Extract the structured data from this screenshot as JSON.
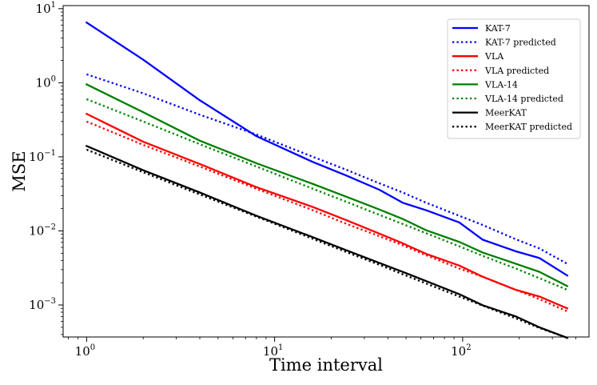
{
  "chart_data": {
    "type": "line",
    "title": "",
    "xlabel": "Time interval",
    "ylabel": "MSE",
    "xscale": "log",
    "yscale": "log",
    "xlim": [
      0.75,
      470
    ],
    "ylim": [
      0.00037,
      11
    ],
    "grid": false,
    "legend_position": "top-right",
    "x_ticks": [
      {
        "value": 1,
        "base": "10",
        "exp": "0"
      },
      {
        "value": 10,
        "base": "10",
        "exp": "1"
      },
      {
        "value": 100,
        "base": "10",
        "exp": "2"
      }
    ],
    "y_ticks": [
      {
        "value": 0.001,
        "base": "10",
        "exp": "−3"
      },
      {
        "value": 0.01,
        "base": "10",
        "exp": "−2"
      },
      {
        "value": 0.1,
        "base": "10",
        "exp": "−1"
      },
      {
        "value": 1,
        "base": "10",
        "exp": "0"
      },
      {
        "value": 10,
        "base": "10",
        "exp": "1"
      }
    ],
    "x": [
      1,
      2,
      4,
      8,
      16,
      24,
      36,
      48,
      64,
      96,
      128,
      192,
      256,
      360
    ],
    "series": [
      {
        "name": "KAT-7",
        "color": "#0000ff",
        "style": "solid",
        "values": [
          6.5,
          2.05,
          0.58,
          0.19,
          0.085,
          0.056,
          0.036,
          0.024,
          0.019,
          0.013,
          0.0076,
          0.0053,
          0.0043,
          0.0025
        ]
      },
      {
        "name": "KAT-7 predicted",
        "color": "#0000ff",
        "style": "dotted",
        "values": [
          1.3,
          0.72,
          0.37,
          0.2,
          0.1,
          0.067,
          0.044,
          0.033,
          0.024,
          0.016,
          0.012,
          0.0077,
          0.0058,
          0.0036
        ]
      },
      {
        "name": "VLA",
        "color": "#ff0000",
        "style": "solid",
        "values": [
          0.38,
          0.16,
          0.08,
          0.039,
          0.021,
          0.014,
          0.0092,
          0.0068,
          0.0049,
          0.0034,
          0.0024,
          0.0016,
          0.0013,
          0.0009
        ]
      },
      {
        "name": "VLA predicted",
        "color": "#ff0000",
        "style": "dotted",
        "values": [
          0.3,
          0.145,
          0.074,
          0.037,
          0.019,
          0.0125,
          0.0085,
          0.0064,
          0.0047,
          0.0031,
          0.0024,
          0.0016,
          0.0012,
          0.00082
        ]
      },
      {
        "name": "VLA-14",
        "color": "#008000",
        "style": "solid",
        "values": [
          0.95,
          0.4,
          0.165,
          0.082,
          0.043,
          0.029,
          0.0195,
          0.0145,
          0.0102,
          0.0071,
          0.0051,
          0.0036,
          0.0028,
          0.0018
        ]
      },
      {
        "name": "VLA-14 predicted",
        "color": "#008000",
        "style": "dotted",
        "values": [
          0.6,
          0.3,
          0.148,
          0.074,
          0.037,
          0.0248,
          0.0165,
          0.0124,
          0.0093,
          0.0062,
          0.0046,
          0.0031,
          0.0023,
          0.0016
        ]
      },
      {
        "name": "MeerKAT",
        "color": "#000000",
        "style": "solid",
        "values": [
          0.14,
          0.066,
          0.033,
          0.016,
          0.0082,
          0.0055,
          0.0037,
          0.0028,
          0.0021,
          0.0014,
          0.00099,
          0.0007,
          0.0005,
          0.00036
        ]
      },
      {
        "name": "MeerKAT predicted",
        "color": "#000000",
        "style": "dotted",
        "values": [
          0.125,
          0.062,
          0.031,
          0.0156,
          0.0078,
          0.0052,
          0.0035,
          0.0026,
          0.00195,
          0.0013,
          0.00098,
          0.00066,
          0.00049,
          0.00036
        ]
      }
    ]
  }
}
